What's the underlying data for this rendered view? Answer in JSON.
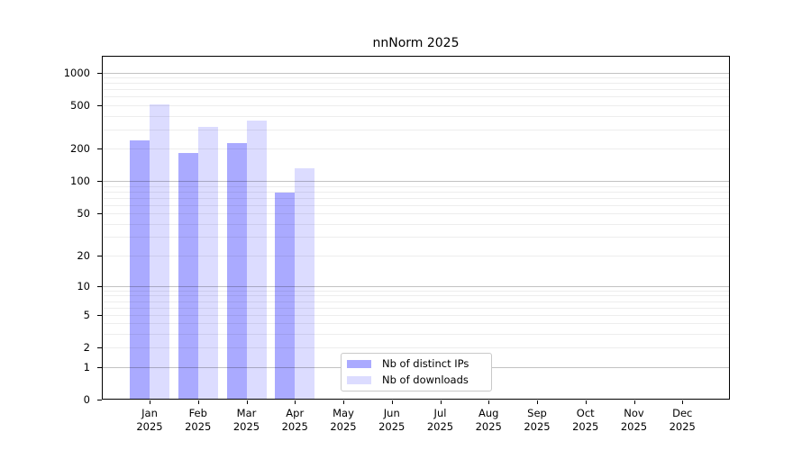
{
  "title": "nnNorm 2025",
  "legend": {
    "items": [
      {
        "label": "Nb of distinct IPs",
        "color": "#aaaaff"
      },
      {
        "label": "Nb of downloads",
        "color": "#dcdcff"
      }
    ]
  },
  "chart_data": {
    "type": "bar",
    "title": "nnNorm 2025",
    "xlabel": "",
    "ylabel": "",
    "categories": [
      "Jan",
      "Feb",
      "Mar",
      "Apr",
      "May",
      "Jun",
      "Jul",
      "Aug",
      "Sep",
      "Oct",
      "Nov",
      "Dec"
    ],
    "category_year": "2025",
    "series": [
      {
        "name": "Nb of distinct IPs",
        "color": "#aaaaff",
        "values": [
          239,
          182,
          224,
          78,
          null,
          null,
          null,
          null,
          null,
          null,
          null,
          null
        ]
      },
      {
        "name": "Nb of downloads",
        "color": "#dcdcff",
        "values": [
          508,
          318,
          363,
          131,
          null,
          null,
          null,
          null,
          null,
          null,
          null,
          null
        ]
      }
    ],
    "y_axis": {
      "scale": "log10(value+1)",
      "ticks": [
        0,
        1,
        2,
        5,
        10,
        20,
        50,
        100,
        200,
        500,
        1000
      ],
      "major_gridlines": [
        1,
        10,
        100,
        1000
      ],
      "ylim": [
        0,
        1430
      ]
    },
    "grid": true,
    "legend_position": "inside-bottom-center"
  }
}
